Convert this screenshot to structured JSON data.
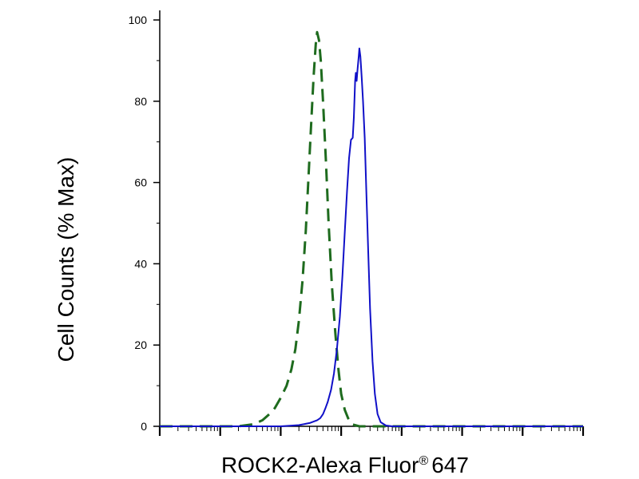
{
  "chart_data": {
    "type": "area",
    "title": "",
    "xlabel": "ROCK2-Alexa Fluor",
    "xlabel_superscript": "®",
    "xlabel_suffix": "647",
    "ylabel": "Cell Counts (% Max)",
    "xscale": "log",
    "xlim": [
      1,
      10000000
    ],
    "ylim": [
      0,
      100
    ],
    "yticks": [
      "0",
      "20",
      "40",
      "60",
      "80",
      "100"
    ],
    "grid": false,
    "series": [
      {
        "style": "dashed",
        "color": "#1e6b1e",
        "points": [
          [
            1,
            0
          ],
          [
            20,
            0
          ],
          [
            35,
            0.5
          ],
          [
            50,
            1.5
          ],
          [
            65,
            3
          ],
          [
            80,
            4.5
          ],
          [
            100,
            7
          ],
          [
            125,
            10
          ],
          [
            150,
            14
          ],
          [
            175,
            19
          ],
          [
            200,
            26
          ],
          [
            230,
            36
          ],
          [
            260,
            48
          ],
          [
            290,
            62
          ],
          [
            320,
            75
          ],
          [
            350,
            86
          ],
          [
            380,
            94
          ],
          [
            400,
            97
          ],
          [
            430,
            95
          ],
          [
            460,
            90
          ],
          [
            500,
            80
          ],
          [
            560,
            65
          ],
          [
            620,
            50
          ],
          [
            700,
            35
          ],
          [
            800,
            23
          ],
          [
            900,
            14
          ],
          [
            1000,
            8
          ],
          [
            1150,
            4
          ],
          [
            1300,
            2
          ],
          [
            1500,
            0.5
          ],
          [
            2000,
            0
          ],
          [
            10000000,
            0
          ]
        ]
      },
      {
        "style": "solid",
        "color": "#1010c8",
        "points": [
          [
            1,
            0
          ],
          [
            100,
            0
          ],
          [
            200,
            0.3
          ],
          [
            300,
            0.8
          ],
          [
            400,
            1.5
          ],
          [
            450,
            2
          ],
          [
            500,
            3
          ],
          [
            550,
            4.5
          ],
          [
            600,
            6
          ],
          [
            680,
            9
          ],
          [
            760,
            13
          ],
          [
            850,
            19
          ],
          [
            950,
            27
          ],
          [
            1050,
            37
          ],
          [
            1150,
            48
          ],
          [
            1250,
            58
          ],
          [
            1350,
            66
          ],
          [
            1450,
            70.5
          ],
          [
            1550,
            71
          ],
          [
            1620,
            76
          ],
          [
            1700,
            85
          ],
          [
            1750,
            87
          ],
          [
            1800,
            85
          ],
          [
            1870,
            88
          ],
          [
            1950,
            91
          ],
          [
            2000,
            93
          ],
          [
            2080,
            91
          ],
          [
            2180,
            86
          ],
          [
            2300,
            80
          ],
          [
            2450,
            71
          ],
          [
            2600,
            58
          ],
          [
            2800,
            43
          ],
          [
            3000,
            29
          ],
          [
            3300,
            16
          ],
          [
            3600,
            8
          ],
          [
            4000,
            3
          ],
          [
            4500,
            1
          ],
          [
            5500,
            0.2
          ],
          [
            7000,
            0
          ],
          [
            10000000,
            0
          ]
        ]
      }
    ]
  }
}
